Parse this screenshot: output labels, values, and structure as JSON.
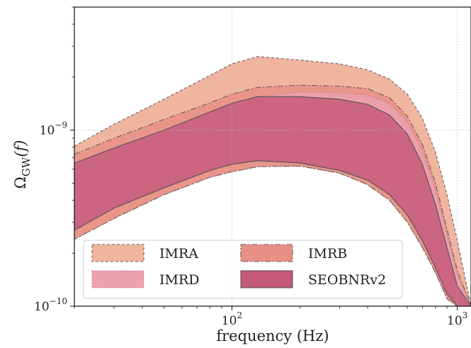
{
  "chart_data": {
    "type": "area",
    "xlabel": "frequency (Hz)",
    "ylabel": "Ω_GW(f)",
    "xscale": "log",
    "yscale": "log",
    "xlim": [
      20,
      1150
    ],
    "ylim": [
      1e-10,
      5e-09
    ],
    "grid": "major, dotted",
    "x_ticks": [
      {
        "value": 100,
        "base": "10",
        "exp": "2"
      },
      {
        "value": 1000,
        "base": "10",
        "exp": "3"
      }
    ],
    "y_ticks": [
      {
        "value": 1e-10,
        "base": "10",
        "exp": "−10"
      },
      {
        "value": 1e-09,
        "base": "10",
        "exp": "−9"
      }
    ],
    "ylabel_parts": {
      "main": "Ω",
      "sub": "GW",
      "rest": "(f)"
    },
    "legend": {
      "position": "lower-center",
      "columns": 2
    },
    "series": [
      {
        "name": "IMRA",
        "color": "#efb59f",
        "edge": "#6b5d5d",
        "style": "dashed",
        "x": [
          20,
          30,
          50,
          80,
          100,
          130,
          200,
          300,
          400,
          500,
          600,
          700,
          800,
          900,
          1000,
          1150
        ],
        "upper": [
          8.1e-10,
          1.08e-09,
          1.5e-09,
          2.05e-09,
          2.38e-09,
          2.62e-09,
          2.5e-09,
          2.38e-09,
          2.2e-09,
          1.95e-09,
          1.6e-09,
          1.17e-09,
          7.5e-10,
          4.3e-10,
          2.35e-10,
          1e-10
        ],
        "lower": [
          2.4e-10,
          3.15e-10,
          4.3e-10,
          5.4e-10,
          5.8e-10,
          6.2e-10,
          6.25e-10,
          5.7e-10,
          4.9e-10,
          4e-10,
          3e-10,
          2.15e-10,
          1.55e-10,
          1.1e-10,
          1e-10,
          1e-10
        ]
      },
      {
        "name": "IMRB",
        "color": "#e88f86",
        "edge": "#6b5d5d",
        "style": "dashdot",
        "x": [
          20,
          30,
          50,
          80,
          100,
          130,
          200,
          300,
          400,
          500,
          600,
          700,
          800,
          900,
          1000,
          1150
        ],
        "upper": [
          7.3e-10,
          9e-10,
          1.15e-09,
          1.43e-09,
          1.6e-09,
          1.75e-09,
          1.8e-09,
          1.78e-09,
          1.72e-09,
          1.53e-09,
          1.2e-09,
          8.3e-10,
          5e-10,
          2.75e-10,
          1.6e-10,
          1e-10
        ],
        "lower": [
          2.4e-10,
          3.15e-10,
          4.3e-10,
          5.4e-10,
          5.8e-10,
          6.2e-10,
          6.25e-10,
          5.7e-10,
          4.9e-10,
          4e-10,
          3e-10,
          2.15e-10,
          1.55e-10,
          1.1e-10,
          1e-10,
          1e-10
        ]
      },
      {
        "name": "IMRD",
        "color": "#eba1b0",
        "edge": "#c07080",
        "style": "dotted",
        "x": [
          20,
          30,
          50,
          80,
          100,
          130,
          200,
          300,
          400,
          500,
          600,
          700,
          800,
          900,
          1000,
          1150
        ],
        "upper": [
          6.5e-10,
          8e-10,
          1e-09,
          1.26e-09,
          1.42e-09,
          1.55e-09,
          1.65e-09,
          1.63e-09,
          1.58e-09,
          1.42e-09,
          1.12e-09,
          7.6e-10,
          4.6e-10,
          2.55e-10,
          1.5e-10,
          1e-10
        ],
        "lower": [
          2.8e-10,
          3.7e-10,
          4.8e-10,
          6e-10,
          6.5e-10,
          6.8e-10,
          6.6e-10,
          6e-10,
          5.3e-10,
          4.4e-10,
          3.35e-10,
          2.4e-10,
          1.7e-10,
          1.2e-10,
          1e-10,
          1e-10
        ]
      },
      {
        "name": "SEOBNRv2",
        "color": "#c55a7a",
        "edge": "#555555",
        "style": "solid",
        "x": [
          20,
          30,
          50,
          80,
          100,
          130,
          200,
          300,
          400,
          500,
          600,
          700,
          800,
          900,
          1000,
          1150
        ],
        "upper": [
          6.5e-10,
          7.9e-10,
          1e-09,
          1.27e-09,
          1.42e-09,
          1.55e-09,
          1.55e-09,
          1.5e-09,
          1.4e-09,
          1.22e-09,
          9.5e-10,
          6.4e-10,
          3.8e-10,
          2.15e-10,
          1.3e-10,
          1e-10
        ],
        "lower": [
          2.7e-10,
          3.6e-10,
          4.7e-10,
          5.9e-10,
          6.4e-10,
          6.7e-10,
          6.5e-10,
          5.9e-10,
          5.2e-10,
          4.3e-10,
          3.3e-10,
          2.35e-10,
          1.65e-10,
          1.17e-10,
          1e-10,
          1e-10
        ]
      }
    ]
  }
}
